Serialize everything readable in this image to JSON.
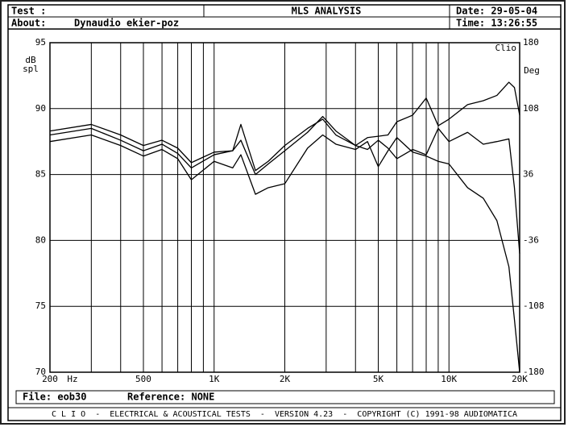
{
  "header": {
    "test_label": "Test :",
    "title": "MLS ANALYSIS",
    "date": "Date: 29-05-04",
    "about_label": "About:",
    "about": "Dynaudio ekier-poz",
    "time": "Time: 13:26:55"
  },
  "chart_data": {
    "type": "line",
    "y_label_1": "dB",
    "y_label_2": "spl",
    "y2_label": "Deg",
    "x_label": "Hz",
    "brand": "Clio",
    "log_x": true,
    "grid": true,
    "x": [
      200,
      300,
      400,
      500,
      600,
      700,
      800,
      1000,
      1200,
      1300,
      1500,
      1700,
      2000,
      2500,
      2900,
      3300,
      4000,
      4500,
      5000,
      5500,
      6000,
      7000,
      8000,
      9000,
      10000,
      12000,
      14000,
      16000,
      18000,
      19000,
      20000
    ],
    "series": [
      {
        "color": "#000000",
        "values": [
          88.3,
          88.8,
          88.0,
          87.2,
          87.6,
          87.0,
          85.9,
          86.7,
          86.8,
          88.8,
          85.3,
          86.0,
          87.2,
          88.5,
          89.2,
          88.0,
          87.2,
          87.8,
          87.9,
          88.0,
          89.0,
          89.5,
          90.8,
          88.7,
          89.2,
          90.3,
          90.6,
          91.0,
          92.0,
          91.6,
          89.5
        ]
      },
      {
        "color": "#000000",
        "values": [
          88.0,
          88.5,
          87.6,
          86.8,
          87.3,
          86.6,
          85.5,
          86.5,
          86.8,
          87.6,
          85.0,
          85.8,
          86.8,
          88.2,
          89.4,
          88.3,
          87.2,
          86.9,
          87.6,
          87.0,
          86.2,
          86.9,
          86.5,
          88.5,
          87.5,
          88.2,
          87.3,
          87.5,
          87.7,
          84.0,
          79.0
        ]
      },
      {
        "color": "#000000",
        "values": [
          87.5,
          88.0,
          87.2,
          86.4,
          86.9,
          86.2,
          84.6,
          86.0,
          85.5,
          86.5,
          83.5,
          84.0,
          84.3,
          87.0,
          88.0,
          87.3,
          86.9,
          87.5,
          85.6,
          86.8,
          87.8,
          86.7,
          86.4,
          86.0,
          85.8,
          84.0,
          83.2,
          81.5,
          78.0,
          74.0,
          70.0
        ]
      }
    ],
    "xlim": [
      200,
      20000
    ],
    "xticks": [
      {
        "value": 200,
        "label": "200"
      },
      {
        "value": 500,
        "label": "500"
      },
      {
        "value": 1000,
        "label": "1K"
      },
      {
        "value": 2000,
        "label": "2K"
      },
      {
        "value": 5000,
        "label": "5K"
      },
      {
        "value": 10000,
        "label": "10K"
      },
      {
        "value": 20000,
        "label": "20K"
      }
    ],
    "xgrid": [
      300,
      400,
      600,
      700,
      800,
      900,
      3000,
      4000,
      6000,
      7000,
      8000,
      9000
    ],
    "ylim": [
      70,
      95
    ],
    "yticks": [
      70,
      75,
      80,
      85,
      90,
      95
    ],
    "y2lim": [
      -180,
      180
    ],
    "y2ticks": [
      -180,
      -108,
      -36,
      36,
      108,
      180
    ]
  },
  "footer": {
    "file": "File: eob30",
    "reference": "Reference: NONE",
    "credits": "C L I O  -  ELECTRICAL & ACOUSTICAL TESTS  -  VERSION 4.23  -  COPYRIGHT (C) 1991-98 AUDIOMATICA"
  }
}
